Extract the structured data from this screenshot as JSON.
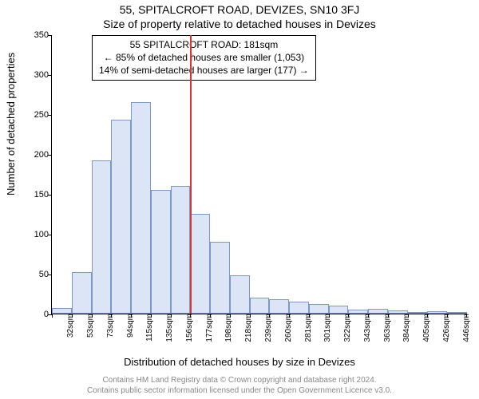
{
  "title_line1": "55, SPITALCROFT ROAD, DEVIZES, SN10 3FJ",
  "title_line2": "Size of property relative to detached houses in Devizes",
  "infobox": {
    "line1": "55 SPITALCROFT ROAD: 181sqm",
    "line2": "← 85% of detached houses are smaller (1,053)",
    "line3": "14% of semi-detached houses are larger (177) →"
  },
  "ylabel": "Number of detached properties",
  "xlabel": "Distribution of detached houses by size in Devizes",
  "credits_line1": "Contains HM Land Registry data © Crown copyright and database right 2024.",
  "credits_line2": "Contains public sector information licensed under the Open Government Licence v3.0.",
  "chart": {
    "type": "histogram",
    "ylim": [
      0,
      350
    ],
    "ytick_step": 50,
    "background_color": "#ffffff",
    "bar_fill": "#dbe5f6",
    "bar_border": "#7a99c9",
    "refline_color": "#d33",
    "refline_x_index": 7,
    "label_fontsize": 13,
    "tick_fontsize": 11,
    "categories": [
      "32sqm",
      "53sqm",
      "73sqm",
      "94sqm",
      "115sqm",
      "135sqm",
      "156sqm",
      "177sqm",
      "198sqm",
      "218sqm",
      "239sqm",
      "260sqm",
      "281sqm",
      "301sqm",
      "322sqm",
      "343sqm",
      "363sqm",
      "384sqm",
      "405sqm",
      "426sqm",
      "446sqm"
    ],
    "values": [
      7,
      52,
      192,
      243,
      265,
      155,
      160,
      125,
      90,
      48,
      20,
      18,
      15,
      12,
      10,
      5,
      6,
      4,
      2,
      3,
      2
    ]
  }
}
